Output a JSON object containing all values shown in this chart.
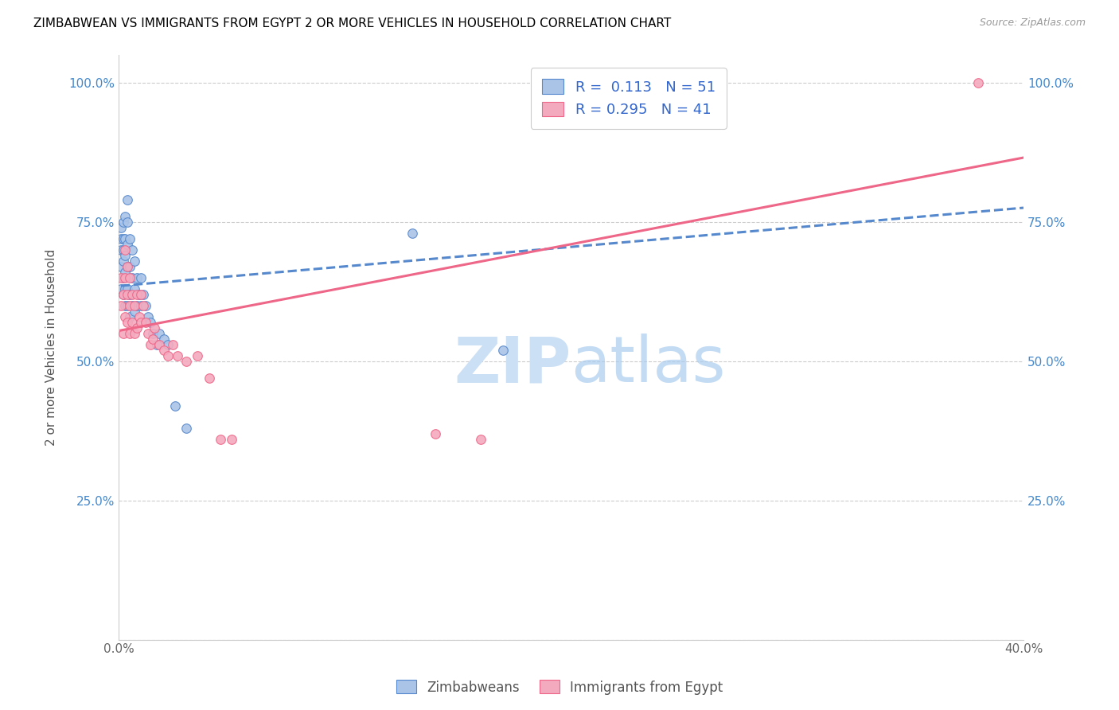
{
  "title": "ZIMBABWEAN VS IMMIGRANTS FROM EGYPT 2 OR MORE VEHICLES IN HOUSEHOLD CORRELATION CHART",
  "source": "Source: ZipAtlas.com",
  "ylabel": "2 or more Vehicles in Household",
  "xlim": [
    0.0,
    0.4
  ],
  "ylim": [
    0.0,
    1.05
  ],
  "zim_color": "#aac4e8",
  "egypt_color": "#f4aabe",
  "zim_line_color": "#5588cc",
  "egypt_line_color": "#ee6688",
  "zim_R": 0.113,
  "zim_N": 51,
  "egypt_R": 0.295,
  "egypt_N": 41,
  "legend_label_zim": "Zimbabweans",
  "legend_label_egypt": "Immigrants from Egypt",
  "zim_x": [
    0.001,
    0.001,
    0.001,
    0.001,
    0.001,
    0.002,
    0.002,
    0.002,
    0.002,
    0.002,
    0.002,
    0.003,
    0.003,
    0.003,
    0.003,
    0.003,
    0.003,
    0.004,
    0.004,
    0.004,
    0.004,
    0.004,
    0.004,
    0.005,
    0.005,
    0.005,
    0.005,
    0.006,
    0.006,
    0.006,
    0.007,
    0.007,
    0.007,
    0.008,
    0.008,
    0.009,
    0.01,
    0.01,
    0.011,
    0.012,
    0.013,
    0.014,
    0.015,
    0.017,
    0.018,
    0.02,
    0.022,
    0.025,
    0.03,
    0.13,
    0.17
  ],
  "zim_y": [
    0.63,
    0.67,
    0.7,
    0.72,
    0.74,
    0.62,
    0.65,
    0.68,
    0.7,
    0.72,
    0.75,
    0.6,
    0.63,
    0.66,
    0.69,
    0.72,
    0.76,
    0.6,
    0.63,
    0.67,
    0.71,
    0.75,
    0.79,
    0.58,
    0.62,
    0.67,
    0.72,
    0.6,
    0.65,
    0.7,
    0.59,
    0.63,
    0.68,
    0.6,
    0.65,
    0.62,
    0.6,
    0.65,
    0.62,
    0.6,
    0.58,
    0.57,
    0.55,
    0.53,
    0.55,
    0.54,
    0.53,
    0.42,
    0.38,
    0.73,
    0.52
  ],
  "egypt_x": [
    0.001,
    0.001,
    0.002,
    0.002,
    0.003,
    0.003,
    0.003,
    0.004,
    0.004,
    0.004,
    0.005,
    0.005,
    0.005,
    0.006,
    0.006,
    0.007,
    0.007,
    0.008,
    0.008,
    0.009,
    0.01,
    0.01,
    0.011,
    0.012,
    0.013,
    0.014,
    0.015,
    0.016,
    0.018,
    0.02,
    0.022,
    0.024,
    0.026,
    0.03,
    0.035,
    0.04,
    0.045,
    0.05,
    0.14,
    0.16,
    0.38
  ],
  "egypt_y": [
    0.6,
    0.65,
    0.55,
    0.62,
    0.58,
    0.65,
    0.7,
    0.57,
    0.62,
    0.67,
    0.55,
    0.6,
    0.65,
    0.57,
    0.62,
    0.55,
    0.6,
    0.56,
    0.62,
    0.58,
    0.57,
    0.62,
    0.6,
    0.57,
    0.55,
    0.53,
    0.54,
    0.56,
    0.53,
    0.52,
    0.51,
    0.53,
    0.51,
    0.5,
    0.51,
    0.47,
    0.36,
    0.36,
    0.37,
    0.36,
    1.0
  ],
  "zim_trend_x": [
    0.001,
    0.4
  ],
  "zim_trend_y": [
    0.635,
    0.775
  ],
  "egypt_trend_x": [
    0.001,
    0.4
  ],
  "egypt_trend_y": [
    0.555,
    0.865
  ]
}
